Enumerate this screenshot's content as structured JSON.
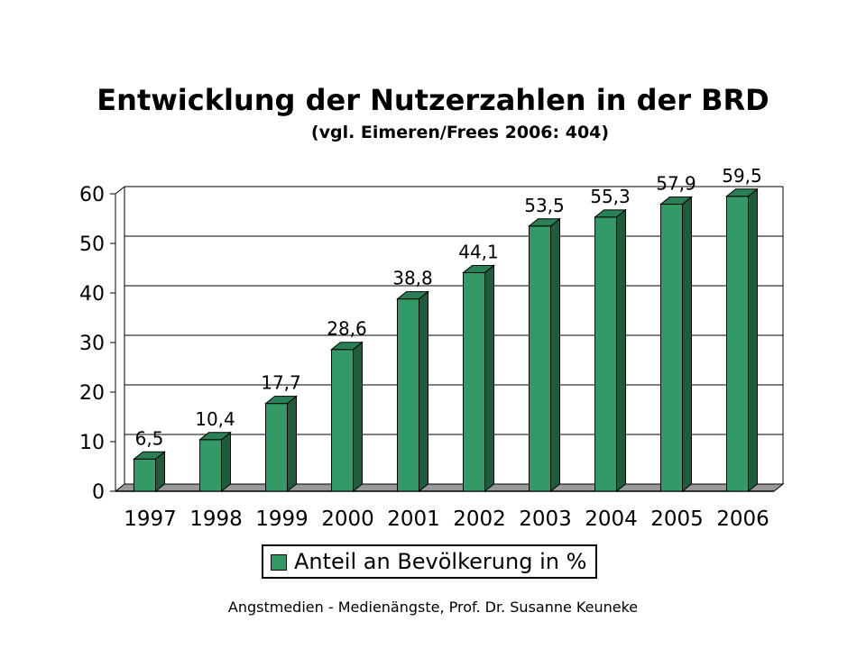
{
  "title": "Entwicklung der Nutzerzahlen in der BRD",
  "subtitle": "(vgl. Eimeren/Frees 2006: 404)",
  "footer": "Angstmedien - Medienängste, Prof. Dr. Susanne Keuneke",
  "colors": {
    "bar_front": "#339966",
    "bar_side": "#1f5c3d",
    "bar_top": "#2a8055",
    "floor": "#999999"
  },
  "chart_data": {
    "type": "bar",
    "categories": [
      "1997",
      "1998",
      "1999",
      "2000",
      "2001",
      "2002",
      "2003",
      "2004",
      "2005",
      "2006"
    ],
    "series": [
      {
        "name": "Anteil an Bevölkerung in %",
        "values": [
          6.5,
          10.4,
          17.7,
          28.6,
          38.8,
          44.1,
          53.5,
          55.3,
          57.9,
          59.5
        ]
      }
    ],
    "data_labels": [
      "6,5",
      "10,4",
      "17,7",
      "28,6",
      "38,8",
      "44,1",
      "53,5",
      "55,3",
      "57,9",
      "59,5"
    ],
    "ylim": [
      0,
      60
    ],
    "yticks": [
      "0",
      "10",
      "20",
      "30",
      "40",
      "50",
      "60"
    ],
    "grid": true,
    "legend_position": "bottom"
  }
}
